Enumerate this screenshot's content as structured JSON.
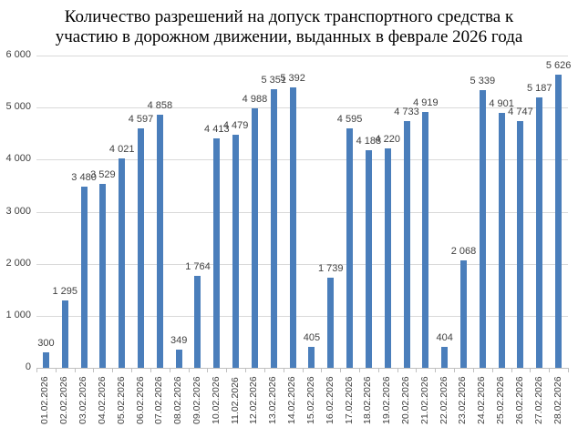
{
  "chart_data": {
    "type": "bar",
    "title": "Количество разрешений на допуск транспортного средства к участию в дорожном движении, выданных в феврале 2026 года",
    "title_lines": [
      "Количество разрешений на допуск транспортного средства к",
      "участию в дорожном движении, выданных в феврале 2026 года"
    ],
    "xlabel": "",
    "ylabel": "",
    "ylim": [
      0,
      6000
    ],
    "yticks": [
      "0",
      "1 000",
      "2 000",
      "3 000",
      "4 000",
      "5 000",
      "6 000"
    ],
    "grid": true,
    "legend": false,
    "bar_color": "#4a7ebb",
    "categories": [
      "01.02.2026",
      "02.02.2026",
      "03.02.2026",
      "04.02.2026",
      "05.02.2026",
      "06.02.2026",
      "07.02.2026",
      "08.02.2026",
      "09.02.2026",
      "10.02.2026",
      "11.02.2026",
      "12.02.2026",
      "13.02.2026",
      "14.02.2026",
      "15.02.2026",
      "16.02.2026",
      "17.02.2026",
      "18.02.2026",
      "19.02.2026",
      "20.02.2026",
      "21.02.2026",
      "22.02.2026",
      "23.02.2026",
      "24.02.2026",
      "25.02.2026",
      "26.02.2026",
      "27.02.2026",
      "28.02.2026"
    ],
    "values": [
      300,
      1295,
      3480,
      3529,
      4021,
      4597,
      4858,
      349,
      1764,
      4413,
      4479,
      4988,
      5351,
      5392,
      405,
      1739,
      4595,
      4188,
      4220,
      4733,
      4919,
      404,
      2068,
      5339,
      4901,
      4747,
      5187,
      5626
    ],
    "value_labels": [
      "300",
      "1 295",
      "3 480",
      "3 529",
      "4 021",
      "4 597",
      "4 858",
      "349",
      "1 764",
      "4 413",
      "4 479",
      "4 988",
      "5 351",
      "5 392",
      "405",
      "1 739",
      "4 595",
      "4 188",
      "4 220",
      "4 733",
      "4 919",
      "404",
      "2 068",
      "5 339",
      "4 901",
      "4 747",
      "5 187",
      "5 626"
    ]
  }
}
